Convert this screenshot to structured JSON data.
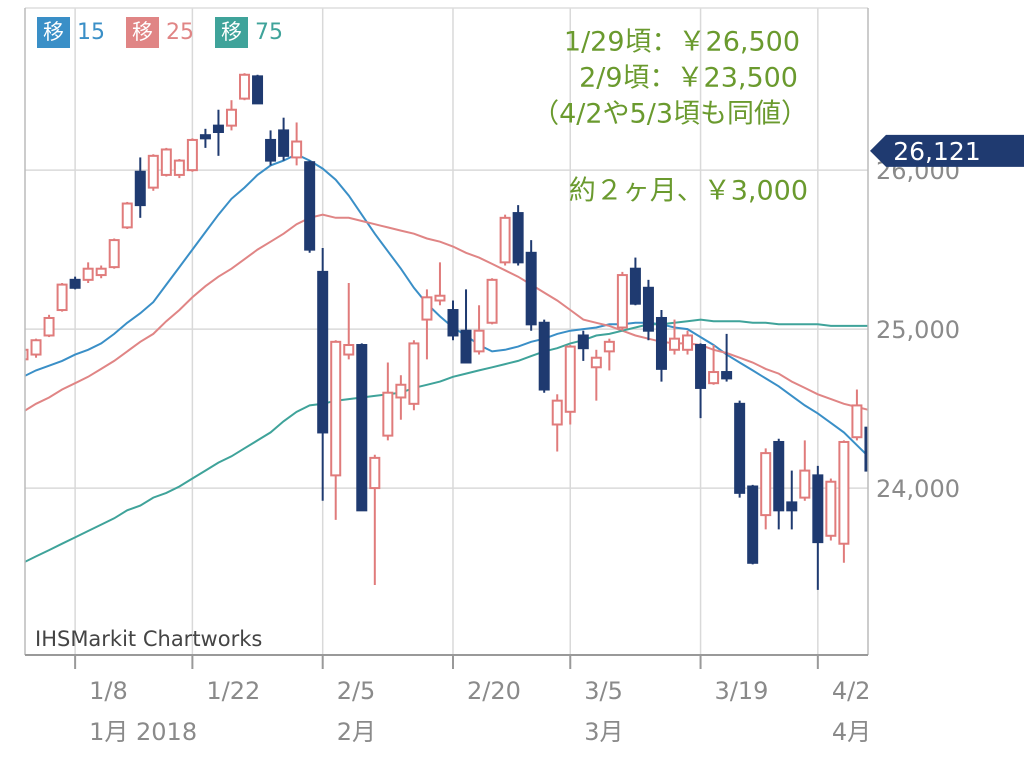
{
  "chart_data": {
    "type": "candlestick",
    "annotations": [
      "1/29頃：￥26,500",
      "2/9頃：￥23,500",
      "（4/2や5/3頃も同値）",
      "約２ヶ月、￥3,000"
    ],
    "watermark": "IHSMarkit Chartworks",
    "categories": [
      null,
      null,
      null,
      null,
      "1/8",
      null,
      null,
      null,
      null,
      null,
      null,
      null,
      null,
      "1/22",
      null,
      null,
      null,
      null,
      null,
      null,
      null,
      null,
      null,
      "2/5",
      null,
      null,
      null,
      null,
      null,
      null,
      null,
      null,
      null,
      "2/20",
      null,
      null,
      null,
      null,
      null,
      null,
      null,
      null,
      "3/5",
      null,
      null,
      null,
      null,
      null,
      null,
      null,
      null,
      null,
      "3/19",
      null,
      null,
      null,
      null,
      null,
      null,
      null,
      null,
      "4/2",
      null,
      null,
      null,
      null
    ],
    "months": [
      null,
      null,
      null,
      null,
      "1月 2018",
      null,
      null,
      null,
      null,
      null,
      null,
      null,
      null,
      null,
      null,
      null,
      null,
      null,
      null,
      null,
      null,
      null,
      null,
      "2月",
      null,
      null,
      null,
      null,
      null,
      null,
      null,
      null,
      null,
      null,
      null,
      null,
      null,
      null,
      null,
      null,
      null,
      null,
      "3月",
      null,
      null,
      null,
      null,
      null,
      null,
      null,
      null,
      null,
      null,
      null,
      null,
      null,
      null,
      null,
      null,
      null,
      null,
      "4月",
      null,
      null,
      null,
      null
    ],
    "candles": {
      "up_color": "#e07b7b",
      "down_color": "#1f3a70",
      "open": [
        24810,
        24840,
        24960,
        25120,
        25310,
        25310,
        25340,
        25390,
        25640,
        25990,
        25890,
        25970,
        25970,
        26000,
        26220,
        26280,
        26280,
        26450,
        26590,
        26190,
        26250,
        26080,
        26050,
        25360,
        24080,
        24840,
        24900,
        24000,
        24330,
        24570,
        24530,
        25060,
        25180,
        25120,
        24990,
        24860,
        25040,
        25420,
        25730,
        25480,
        25040,
        24400,
        24480,
        24960,
        24760,
        24860,
        25010,
        25380,
        25260,
        25070,
        24870,
        24870,
        24900,
        24660,
        24730,
        24530,
        24010,
        23830,
        24290,
        23910,
        23940,
        24080,
        23700,
        23650,
        24320,
        24380
      ],
      "high": [
        24900,
        24940,
        25090,
        25290,
        25330,
        25420,
        25400,
        25570,
        25800,
        26080,
        26100,
        26140,
        26070,
        26200,
        26260,
        26380,
        26440,
        26610,
        26600,
        26250,
        26330,
        26300,
        26060,
        25510,
        24930,
        25290,
        24910,
        24210,
        24790,
        24710,
        24930,
        25250,
        25420,
        25180,
        25250,
        25150,
        25320,
        25720,
        25780,
        25560,
        25060,
        24590,
        24900,
        24990,
        24870,
        24940,
        25360,
        25450,
        25310,
        25120,
        25060,
        24990,
        24910,
        24900,
        24970,
        24550,
        24020,
        24250,
        24310,
        24110,
        24300,
        24140,
        24060,
        24300,
        24620,
        24400
      ],
      "low": [
        24790,
        24820,
        24950,
        25110,
        25250,
        25290,
        25320,
        25380,
        25630,
        25700,
        25870,
        25960,
        25950,
        25990,
        26140,
        26090,
        26250,
        26440,
        26420,
        26030,
        26060,
        26030,
        25480,
        23920,
        23800,
        24810,
        23860,
        23390,
        24300,
        24430,
        24490,
        24810,
        25150,
        24930,
        24790,
        24840,
        25030,
        25400,
        25400,
        24990,
        24600,
        24230,
        24400,
        24800,
        24550,
        24740,
        24990,
        25150,
        24930,
        24670,
        24840,
        24840,
        24440,
        24650,
        24670,
        23940,
        23520,
        23740,
        23740,
        23740,
        23920,
        23360,
        23670,
        23530,
        24300,
        23960
      ],
      "close": [
        24870,
        24930,
        25070,
        25280,
        25260,
        25380,
        25380,
        25560,
        25790,
        25780,
        26090,
        26130,
        26060,
        26190,
        26200,
        26240,
        26380,
        26600,
        26420,
        26060,
        26090,
        26180,
        25500,
        24350,
        24920,
        24900,
        23860,
        24190,
        24600,
        24650,
        24910,
        25200,
        25210,
        24960,
        24790,
        24990,
        25310,
        25700,
        25420,
        25030,
        24620,
        24550,
        24890,
        24880,
        24820,
        24920,
        25340,
        25160,
        24990,
        24750,
        24940,
        24960,
        24630,
        24730,
        24690,
        23970,
        23530,
        24220,
        23860,
        23860,
        24110,
        23660,
        24040,
        24290,
        24520,
        24110
      ]
    },
    "series": [
      {
        "name": "移",
        "period": 15,
        "color": "#3a8fc7",
        "values": [
          24700,
          24740,
          24770,
          24800,
          24840,
          24870,
          24910,
          24970,
          25040,
          25100,
          25170,
          25280,
          25390,
          25500,
          25610,
          25720,
          25820,
          25890,
          25970,
          26030,
          26060,
          26100,
          26060,
          26010,
          25940,
          25840,
          25720,
          25600,
          25490,
          25380,
          25260,
          25160,
          25080,
          25010,
          24960,
          24900,
          24860,
          24870,
          24890,
          24920,
          24940,
          24970,
          24990,
          25000,
          25010,
          25030,
          25030,
          25040,
          25040,
          25030,
          25010,
          25000,
          24950,
          24900,
          24840,
          24790,
          24740,
          24690,
          24640,
          24580,
          24520,
          24470,
          24410,
          24350,
          24270,
          24190
        ]
      },
      {
        "name": "移",
        "period": 25,
        "color": "#e08585",
        "values": [
          24480,
          24530,
          24570,
          24620,
          24660,
          24700,
          24750,
          24800,
          24860,
          24920,
          24970,
          25050,
          25120,
          25200,
          25270,
          25330,
          25380,
          25440,
          25500,
          25550,
          25600,
          25660,
          25700,
          25720,
          25700,
          25700,
          25680,
          25660,
          25640,
          25620,
          25600,
          25570,
          25550,
          25520,
          25480,
          25450,
          25410,
          25370,
          25330,
          25280,
          25230,
          25180,
          25120,
          25060,
          25040,
          25020,
          24990,
          24960,
          24940,
          24920,
          24910,
          24910,
          24900,
          24870,
          24850,
          24820,
          24790,
          24750,
          24720,
          24670,
          24630,
          24590,
          24560,
          24530,
          24510,
          24490
        ]
      },
      {
        "name": "移",
        "period": 75,
        "color": "#3fa39a",
        "values": [
          23530,
          23570,
          23610,
          23650,
          23690,
          23730,
          23770,
          23810,
          23860,
          23890,
          23940,
          23970,
          24010,
          24060,
          24110,
          24160,
          24200,
          24250,
          24300,
          24350,
          24420,
          24480,
          24520,
          24530,
          24550,
          24560,
          24570,
          24580,
          24590,
          24600,
          24630,
          24650,
          24670,
          24700,
          24720,
          24740,
          24760,
          24780,
          24800,
          24830,
          24860,
          24880,
          24910,
          24930,
          24960,
          24970,
          24990,
          25010,
          25030,
          25030,
          25040,
          25050,
          25060,
          25050,
          25050,
          25050,
          25040,
          25040,
          25030,
          25030,
          25030,
          25030,
          25020,
          25020,
          25020,
          25020
        ]
      }
    ],
    "ylim": [
      22950,
      27020
    ],
    "yticks": [
      {
        "value": 24000,
        "label": "24,000"
      },
      {
        "value": 25000,
        "label": "25,000"
      },
      {
        "value": 26000,
        "label": "26,000"
      }
    ],
    "last_price": {
      "value": 26121,
      "label": "26,121"
    },
    "grid": true
  }
}
